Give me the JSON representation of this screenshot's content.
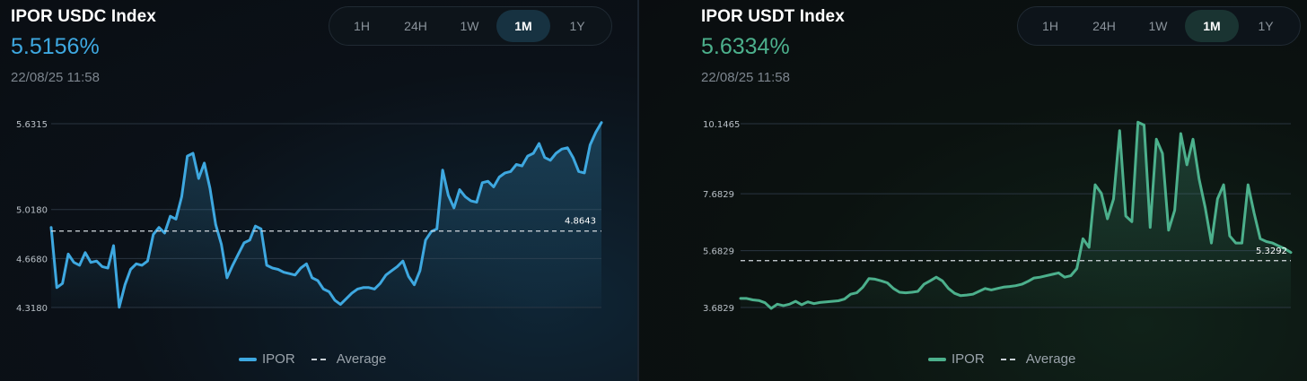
{
  "panels": [
    {
      "title": "IPOR USDC Index",
      "value": "5.5156%",
      "timestamp": "22/08/25 11:58",
      "accent": "#3ea8e0",
      "tabs": [
        "1H",
        "24H",
        "1W",
        "1M",
        "1Y"
      ],
      "active_tab": "1M",
      "legend": {
        "series": "IPOR",
        "average": "Average"
      }
    },
    {
      "title": "IPOR USDT Index",
      "value": "5.6334%",
      "timestamp": "22/08/25 11:58",
      "accent": "#4cb08c",
      "tabs": [
        "1H",
        "24H",
        "1W",
        "1M",
        "1Y"
      ],
      "active_tab": "1M",
      "legend": {
        "series": "IPOR",
        "average": "Average"
      }
    }
  ],
  "chart_data": [
    {
      "type": "line",
      "title": "IPOR USDC Index",
      "ylim": [
        4.318,
        5.6315
      ],
      "yticks": [
        "5.6315",
        "5.0180",
        "4.6680",
        "4.3180"
      ],
      "ytick_values": [
        5.6315,
        5.018,
        4.668,
        4.318
      ],
      "average": 4.8643,
      "average_label": "4.8643",
      "series": [
        {
          "name": "IPOR",
          "values": [
            4.89,
            4.46,
            4.49,
            4.7,
            4.64,
            4.62,
            4.71,
            4.64,
            4.65,
            4.61,
            4.6,
            4.76,
            4.32,
            4.48,
            4.59,
            4.63,
            4.62,
            4.65,
            4.84,
            4.89,
            4.85,
            4.97,
            4.95,
            5.11,
            5.4,
            5.42,
            5.24,
            5.35,
            5.17,
            4.91,
            4.77,
            4.53,
            4.62,
            4.7,
            4.78,
            4.8,
            4.9,
            4.88,
            4.62,
            4.6,
            4.59,
            4.57,
            4.56,
            4.55,
            4.6,
            4.63,
            4.53,
            4.51,
            4.45,
            4.43,
            4.37,
            4.34,
            4.38,
            4.42,
            4.45,
            4.46,
            4.46,
            4.45,
            4.49,
            4.55,
            4.58,
            4.61,
            4.65,
            4.54,
            4.48,
            4.58,
            4.8,
            4.86,
            4.88,
            5.3,
            5.12,
            5.03,
            5.16,
            5.11,
            5.08,
            5.07,
            5.21,
            5.22,
            5.18,
            5.25,
            5.28,
            5.29,
            5.34,
            5.33,
            5.4,
            5.42,
            5.49,
            5.39,
            5.37,
            5.42,
            5.45,
            5.46,
            5.39,
            5.29,
            5.28,
            5.48,
            5.57,
            5.64
          ]
        }
      ]
    },
    {
      "type": "line",
      "title": "IPOR USDT Index",
      "ylim": [
        3.6829,
        10.1465
      ],
      "yticks": [
        "10.1465",
        "7.6829",
        "5.6829",
        "3.6829"
      ],
      "ytick_values": [
        10.1465,
        7.6829,
        5.6829,
        3.6829
      ],
      "average": 5.3292,
      "average_label": "5.3292",
      "series": [
        {
          "name": "IPOR",
          "values": [
            4.0,
            4.0,
            3.95,
            3.93,
            3.85,
            3.65,
            3.8,
            3.75,
            3.8,
            3.9,
            3.78,
            3.88,
            3.82,
            3.86,
            3.88,
            3.9,
            3.92,
            3.98,
            4.15,
            4.2,
            4.4,
            4.7,
            4.68,
            4.62,
            4.55,
            4.35,
            4.22,
            4.2,
            4.22,
            4.25,
            4.5,
            4.62,
            4.75,
            4.62,
            4.35,
            4.18,
            4.1,
            4.12,
            4.15,
            4.25,
            4.35,
            4.3,
            4.35,
            4.4,
            4.42,
            4.45,
            4.5,
            4.6,
            4.72,
            4.75,
            4.8,
            4.85,
            4.9,
            4.75,
            4.8,
            5.05,
            6.1,
            5.8,
            8.0,
            7.7,
            6.8,
            7.5,
            9.9,
            6.9,
            6.7,
            10.2,
            10.1,
            6.5,
            9.6,
            9.1,
            6.4,
            7.1,
            9.8,
            8.7,
            9.6,
            8.2,
            7.2,
            5.95,
            7.5,
            8.0,
            6.2,
            5.95,
            5.95,
            8.0,
            7.0,
            6.1,
            6.0,
            5.95,
            5.85,
            5.75,
            5.62
          ]
        }
      ]
    }
  ]
}
